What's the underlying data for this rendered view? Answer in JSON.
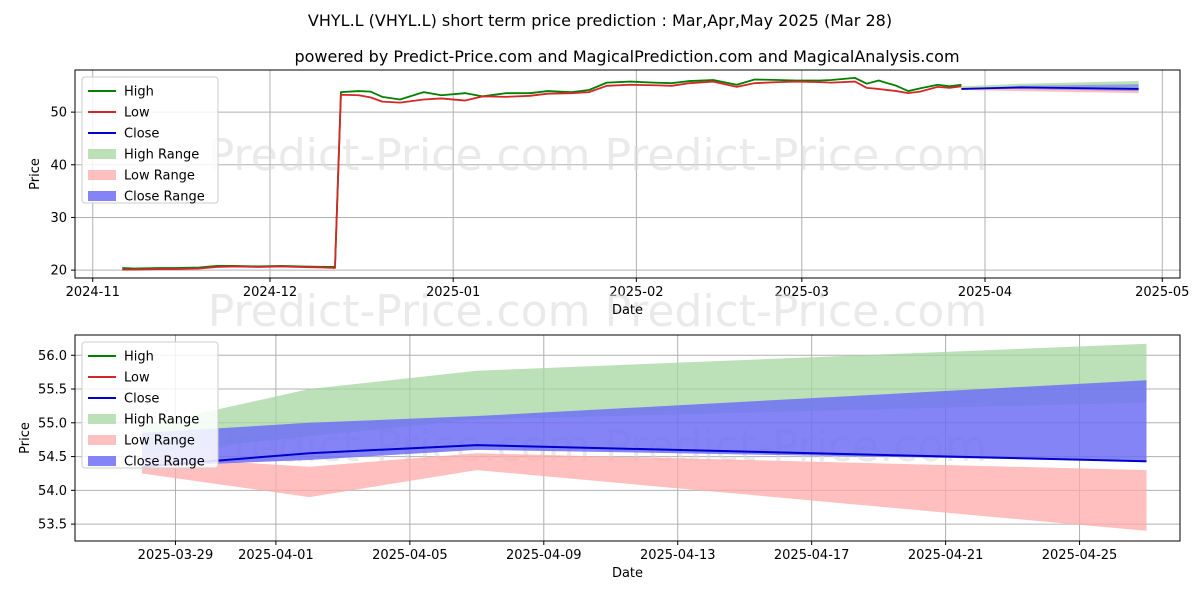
{
  "title": "VHYL.L (VHYL.L) short term price prediction : Mar,Apr,May 2025 (Mar 28)",
  "subtitle": "powered by Predict-Price.com and MagicalPrediction.com and MagicalAnalysis.com",
  "watermark": "Predict-Price.com",
  "colors": {
    "high": "#008000",
    "low": "#d62728",
    "close": "#0000cd",
    "high_range": "#a5d6a0",
    "low_range": "#ffaaaa",
    "close_range": "#6f6ff5"
  },
  "legend": [
    "High",
    "Low",
    "Close",
    "High Range",
    "Low Range",
    "Close Range"
  ],
  "chart_data": [
    {
      "type": "line",
      "xlabel": "Date",
      "ylabel": "Price",
      "xlim": [
        "2024-10-29",
        "2025-05-04"
      ],
      "ylim": [
        18.5,
        58
      ],
      "grid": true,
      "legend_position": "top-left",
      "x_ticks": [
        "2024-11-01",
        "2024-12-01",
        "2025-01-01",
        "2025-02-01",
        "2025-03-01",
        "2025-04-01",
        "2025-05-01"
      ],
      "x_tick_labels": [
        "2024-11",
        "2024-12",
        "2025-01",
        "2025-02",
        "2025-03",
        "2025-04",
        "2025-05"
      ],
      "y_ticks": [
        20,
        30,
        40,
        50
      ],
      "history_dates": [
        "2024-11-06",
        "2024-11-08",
        "2024-11-12",
        "2024-11-15",
        "2024-11-19",
        "2024-11-22",
        "2024-11-25",
        "2024-11-29",
        "2024-12-03",
        "2024-12-06",
        "2024-12-10",
        "2024-12-12",
        "2024-12-13",
        "2024-12-16",
        "2024-12-18",
        "2024-12-20",
        "2024-12-23",
        "2024-12-27",
        "2024-12-30",
        "2025-01-03",
        "2025-01-06",
        "2025-01-10",
        "2025-01-14",
        "2025-01-17",
        "2025-01-21",
        "2025-01-24",
        "2025-01-27",
        "2025-01-31",
        "2025-02-04",
        "2025-02-07",
        "2025-02-10",
        "2025-02-14",
        "2025-02-18",
        "2025-02-21",
        "2025-02-25",
        "2025-02-28",
        "2025-03-04",
        "2025-03-06",
        "2025-03-10",
        "2025-03-12",
        "2025-03-14",
        "2025-03-17",
        "2025-03-19",
        "2025-03-21",
        "2025-03-24",
        "2025-03-26",
        "2025-03-28"
      ],
      "history_high": [
        20.4,
        20.3,
        20.4,
        20.4,
        20.5,
        20.8,
        20.8,
        20.7,
        20.8,
        20.7,
        20.6,
        20.6,
        53.8,
        54.0,
        53.9,
        52.9,
        52.4,
        53.8,
        53.2,
        53.6,
        53.0,
        53.6,
        53.6,
        54.0,
        53.8,
        54.2,
        55.6,
        55.8,
        55.6,
        55.5,
        55.9,
        56.1,
        55.2,
        56.2,
        56.1,
        56.0,
        56.0,
        56.1,
        56.5,
        55.4,
        56.0,
        55.0,
        54.0,
        54.5,
        55.2,
        54.9,
        55.2
      ],
      "history_low": [
        20.1,
        20.1,
        20.2,
        20.2,
        20.3,
        20.6,
        20.7,
        20.6,
        20.7,
        20.6,
        20.5,
        20.4,
        53.3,
        53.2,
        52.8,
        52.0,
        51.8,
        52.4,
        52.6,
        52.2,
        53.0,
        52.9,
        53.1,
        53.5,
        53.6,
        53.8,
        55.0,
        55.2,
        55.1,
        55.0,
        55.5,
        55.8,
        54.8,
        55.5,
        55.7,
        55.8,
        55.7,
        55.6,
        55.8,
        54.6,
        54.4,
        54.0,
        53.6,
        53.9,
        54.8,
        54.6,
        54.9
      ],
      "forecast_dates": [
        "2025-03-28",
        "2025-04-07",
        "2025-04-27"
      ],
      "forecast_close": [
        54.4,
        54.7,
        54.4
      ],
      "forecast_high_range": [
        [
          54.9,
          54.4
        ],
        [
          55.4,
          54.8
        ],
        [
          55.9,
          54.5
        ]
      ],
      "forecast_low_range": [
        [
          54.6,
          54.2
        ],
        [
          54.6,
          54.0
        ],
        [
          54.2,
          53.6
        ]
      ],
      "forecast_close_range": [
        [
          54.5,
          54.3
        ],
        [
          55.0,
          54.4
        ],
        [
          55.3,
          54.0
        ]
      ]
    },
    {
      "type": "area",
      "xlabel": "Date",
      "ylabel": "Price",
      "xlim": [
        "2025-03-26",
        "2025-04-28"
      ],
      "ylim": [
        53.25,
        56.3
      ],
      "grid": true,
      "legend_position": "top-left",
      "x_ticks": [
        "2025-03-29",
        "2025-04-01",
        "2025-04-05",
        "2025-04-09",
        "2025-04-13",
        "2025-04-17",
        "2025-04-21",
        "2025-04-25"
      ],
      "y_ticks": [
        53.5,
        54.0,
        54.5,
        55.0,
        55.5,
        56.0
      ],
      "y_tick_labels": [
        "53.5",
        "54.0",
        "54.5",
        "55.0",
        "55.5",
        "56.0"
      ],
      "dates": [
        "2025-03-28",
        "2025-04-02",
        "2025-04-07",
        "2025-04-27"
      ],
      "close": [
        54.35,
        54.55,
        54.67,
        54.43
      ],
      "high_range": [
        [
          54.95,
          54.55
        ],
        [
          55.5,
          54.8
        ],
        [
          55.77,
          55.05
        ],
        [
          56.17,
          55.3
        ]
      ],
      "low_range": [
        [
          54.5,
          54.25
        ],
        [
          54.35,
          53.9
        ],
        [
          54.55,
          54.3
        ],
        [
          54.3,
          53.4
        ]
      ],
      "close_range": [
        [
          54.85,
          54.35
        ],
        [
          55.0,
          54.45
        ],
        [
          55.1,
          54.6
        ],
        [
          55.63,
          54.43
        ]
      ]
    }
  ]
}
